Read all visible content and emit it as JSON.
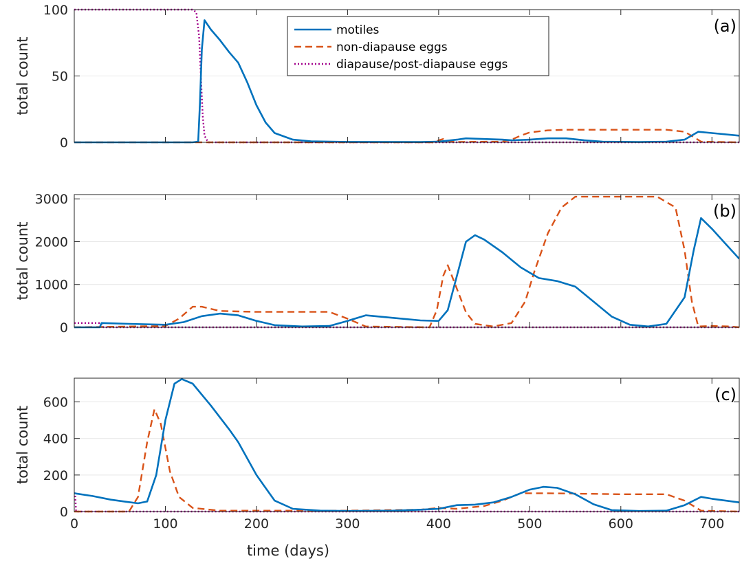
{
  "figure": {
    "xlabel": "time (days)"
  },
  "legend": {
    "entries": [
      {
        "name": "motiles",
        "color": "#0072BD",
        "style": "solid"
      },
      {
        "name": "non-diapause eggs",
        "color": "#D95319",
        "style": "dashed"
      },
      {
        "name": "diapause/post-diapause eggs",
        "color": "#A2008C",
        "style": "dotted"
      }
    ]
  },
  "chart_data": [
    {
      "type": "line",
      "panel_label": "(a)",
      "ylabel": "total count",
      "xlim": [
        0,
        730
      ],
      "ylim": [
        0,
        100
      ],
      "xticks": [
        0,
        100,
        200,
        300,
        400,
        500,
        600,
        700
      ],
      "yticks": [
        0,
        50,
        100
      ],
      "grid": "horizontal",
      "series": [
        {
          "name": "motiles",
          "points": [
            [
              0,
              0
            ],
            [
              130,
              0
            ],
            [
              136,
              0.5
            ],
            [
              138,
              30
            ],
            [
              140,
              70
            ],
            [
              143,
              92
            ],
            [
              150,
              85
            ],
            [
              160,
              77
            ],
            [
              170,
              68
            ],
            [
              180,
              60
            ],
            [
              190,
              45
            ],
            [
              200,
              28
            ],
            [
              210,
              15
            ],
            [
              220,
              7
            ],
            [
              240,
              2
            ],
            [
              260,
              0.8
            ],
            [
              300,
              0.3
            ],
            [
              380,
              0.2
            ],
            [
              400,
              0.5
            ],
            [
              420,
              2
            ],
            [
              430,
              3
            ],
            [
              450,
              2.5
            ],
            [
              470,
              2
            ],
            [
              480,
              1.5
            ],
            [
              500,
              2
            ],
            [
              520,
              3
            ],
            [
              540,
              3
            ],
            [
              560,
              1.5
            ],
            [
              580,
              0.5
            ],
            [
              620,
              0.2
            ],
            [
              650,
              0.5
            ],
            [
              670,
              2
            ],
            [
              685,
              8
            ],
            [
              700,
              7
            ],
            [
              730,
              5
            ]
          ]
        },
        {
          "name": "non-diapause eggs",
          "points": [
            [
              0,
              0
            ],
            [
              395,
              0
            ],
            [
              400,
              1.5
            ],
            [
              405,
              2.5
            ],
            [
              410,
              1
            ],
            [
              420,
              0.3
            ],
            [
              470,
              0.5
            ],
            [
              480,
              2
            ],
            [
              490,
              5
            ],
            [
              500,
              7.5
            ],
            [
              520,
              9
            ],
            [
              540,
              9.5
            ],
            [
              600,
              9.5
            ],
            [
              650,
              9.5
            ],
            [
              670,
              8
            ],
            [
              680,
              4
            ],
            [
              688,
              0.5
            ],
            [
              730,
              0
            ]
          ]
        },
        {
          "name": "diapause/post-diapause eggs",
          "points": [
            [
              0,
              100
            ],
            [
              130,
              100
            ],
            [
              134,
              98
            ],
            [
              137,
              80
            ],
            [
              139,
              50
            ],
            [
              141,
              20
            ],
            [
              143,
              5
            ],
            [
              147,
              0
            ],
            [
              730,
              0
            ]
          ]
        }
      ]
    },
    {
      "type": "line",
      "panel_label": "(b)",
      "ylabel": "total count",
      "xlim": [
        0,
        730
      ],
      "ylim": [
        0,
        3100
      ],
      "xticks": [
        0,
        100,
        200,
        300,
        400,
        500,
        600,
        700
      ],
      "yticks": [
        0,
        1000,
        2000,
        3000
      ],
      "grid": "horizontal",
      "series": [
        {
          "name": "motiles",
          "points": [
            [
              0,
              0
            ],
            [
              28,
              0
            ],
            [
              30,
              100
            ],
            [
              60,
              80
            ],
            [
              100,
              60
            ],
            [
              120,
              120
            ],
            [
              140,
              260
            ],
            [
              160,
              320
            ],
            [
              180,
              280
            ],
            [
              200,
              150
            ],
            [
              220,
              50
            ],
            [
              250,
              20
            ],
            [
              280,
              30
            ],
            [
              300,
              150
            ],
            [
              320,
              280
            ],
            [
              350,
              220
            ],
            [
              380,
              160
            ],
            [
              400,
              150
            ],
            [
              410,
              400
            ],
            [
              420,
              1200
            ],
            [
              430,
              2000
            ],
            [
              440,
              2150
            ],
            [
              450,
              2050
            ],
            [
              470,
              1750
            ],
            [
              490,
              1400
            ],
            [
              510,
              1150
            ],
            [
              530,
              1080
            ],
            [
              550,
              950
            ],
            [
              570,
              600
            ],
            [
              590,
              250
            ],
            [
              610,
              60
            ],
            [
              630,
              20
            ],
            [
              650,
              80
            ],
            [
              670,
              700
            ],
            [
              680,
              1800
            ],
            [
              688,
              2550
            ],
            [
              700,
              2300
            ],
            [
              715,
              1950
            ],
            [
              730,
              1600
            ]
          ]
        },
        {
          "name": "non-diapause eggs",
          "points": [
            [
              0,
              0
            ],
            [
              100,
              30
            ],
            [
              115,
              200
            ],
            [
              130,
              480
            ],
            [
              140,
              480
            ],
            [
              160,
              380
            ],
            [
              200,
              360
            ],
            [
              280,
              360
            ],
            [
              300,
              200
            ],
            [
              320,
              20
            ],
            [
              390,
              0
            ],
            [
              398,
              400
            ],
            [
              405,
              1200
            ],
            [
              410,
              1450
            ],
            [
              420,
              900
            ],
            [
              430,
              350
            ],
            [
              440,
              80
            ],
            [
              460,
              20
            ],
            [
              480,
              100
            ],
            [
              495,
              600
            ],
            [
              505,
              1300
            ],
            [
              520,
              2200
            ],
            [
              535,
              2800
            ],
            [
              550,
              3050
            ],
            [
              600,
              3050
            ],
            [
              640,
              3050
            ],
            [
              660,
              2800
            ],
            [
              670,
              1800
            ],
            [
              678,
              600
            ],
            [
              685,
              20
            ],
            [
              700,
              30
            ],
            [
              720,
              20
            ],
            [
              730,
              0
            ]
          ]
        },
        {
          "name": "diapause/post-diapause eggs",
          "points": [
            [
              0,
              100
            ],
            [
              30,
              100
            ],
            [
              32,
              0
            ],
            [
              730,
              0
            ]
          ]
        }
      ]
    },
    {
      "type": "line",
      "panel_label": "(c)",
      "ylabel": "total count",
      "xlim": [
        0,
        730
      ],
      "ylim": [
        0,
        730
      ],
      "xticks": [
        0,
        100,
        200,
        300,
        400,
        500,
        600,
        700
      ],
      "yticks": [
        0,
        200,
        400,
        600
      ],
      "grid": "horizontal",
      "series": [
        {
          "name": "motiles",
          "points": [
            [
              0,
              100
            ],
            [
              20,
              85
            ],
            [
              40,
              65
            ],
            [
              55,
              55
            ],
            [
              70,
              45
            ],
            [
              80,
              55
            ],
            [
              90,
              200
            ],
            [
              100,
              500
            ],
            [
              110,
              700
            ],
            [
              118,
              725
            ],
            [
              130,
              700
            ],
            [
              150,
              580
            ],
            [
              170,
              450
            ],
            [
              180,
              380
            ],
            [
              200,
              200
            ],
            [
              220,
              60
            ],
            [
              240,
              15
            ],
            [
              270,
              5
            ],
            [
              300,
              3
            ],
            [
              350,
              5
            ],
            [
              380,
              10
            ],
            [
              400,
              15
            ],
            [
              420,
              35
            ],
            [
              440,
              38
            ],
            [
              460,
              50
            ],
            [
              480,
              80
            ],
            [
              500,
              120
            ],
            [
              515,
              135
            ],
            [
              530,
              130
            ],
            [
              550,
              95
            ],
            [
              570,
              40
            ],
            [
              590,
              8
            ],
            [
              620,
              3
            ],
            [
              650,
              5
            ],
            [
              670,
              35
            ],
            [
              688,
              80
            ],
            [
              700,
              70
            ],
            [
              730,
              50
            ]
          ]
        },
        {
          "name": "non-diapause eggs",
          "points": [
            [
              0,
              0
            ],
            [
              60,
              0
            ],
            [
              70,
              80
            ],
            [
              80,
              380
            ],
            [
              88,
              560
            ],
            [
              95,
              480
            ],
            [
              105,
              220
            ],
            [
              115,
              80
            ],
            [
              130,
              20
            ],
            [
              160,
              5
            ],
            [
              300,
              5
            ],
            [
              380,
              10
            ],
            [
              400,
              20
            ],
            [
              420,
              15
            ],
            [
              450,
              30
            ],
            [
              470,
              60
            ],
            [
              490,
              100
            ],
            [
              520,
              100
            ],
            [
              600,
              95
            ],
            [
              650,
              95
            ],
            [
              670,
              60
            ],
            [
              688,
              5
            ],
            [
              730,
              0
            ]
          ]
        },
        {
          "name": "diapause/post-diapause eggs",
          "points": [
            [
              0,
              100
            ],
            [
              1,
              100
            ],
            [
              2,
              0
            ],
            [
              730,
              0
            ]
          ]
        }
      ]
    }
  ]
}
